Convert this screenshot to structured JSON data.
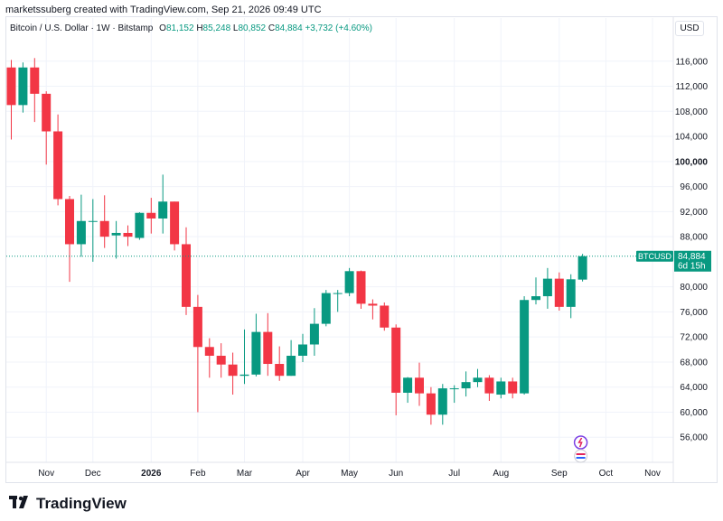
{
  "credit": "marketssuberg created with TradingView.com, Sep 21, 2026 09:49 UTC",
  "legend": {
    "symbol": "Bitcoin / U.S. Dollar · 1W · Bitstamp",
    "o_label": "O",
    "o_value": "81,152",
    "h_label": "H",
    "h_value": "85,248",
    "l_label": "L",
    "l_value": "80,852",
    "c_label": "C",
    "c_value": "84,884",
    "change": "+3,732 (+4.60%)"
  },
  "currency": "USD",
  "price_tag": {
    "symbol": "BTCUSD",
    "price": "84,884",
    "countdown": "6d 15h"
  },
  "logo_text": "TradingView",
  "colors": {
    "up": "#089981",
    "down": "#f23645",
    "grid": "#f0f3fa",
    "axis_text": "#131722"
  },
  "chart_data": {
    "type": "candlestick",
    "ylim": [
      52000,
      120000
    ],
    "x_ticks": [
      {
        "label": "Nov",
        "index": 3
      },
      {
        "label": "Dec",
        "index": 7
      },
      {
        "label": "2026",
        "index": 12
      },
      {
        "label": "Feb",
        "index": 16
      },
      {
        "label": "Mar",
        "index": 20
      },
      {
        "label": "Apr",
        "index": 25
      },
      {
        "label": "May",
        "index": 29
      },
      {
        "label": "Jun",
        "index": 33
      },
      {
        "label": "Jul",
        "index": 38
      },
      {
        "label": "Aug",
        "index": 42
      },
      {
        "label": "Sep",
        "index": 47
      },
      {
        "label": "Oct",
        "index": 51
      },
      {
        "label": "Nov",
        "index": 55
      }
    ],
    "y_ticks": [
      {
        "label": "116,000",
        "value": 116000
      },
      {
        "label": "112,000",
        "value": 112000
      },
      {
        "label": "108,000",
        "value": 108000
      },
      {
        "label": "104,000",
        "value": 104000
      },
      {
        "label": "100,000",
        "value": 100000,
        "bold": true
      },
      {
        "label": "96,000",
        "value": 96000
      },
      {
        "label": "92,000",
        "value": 92000
      },
      {
        "label": "88,000",
        "value": 88000
      },
      {
        "label": "80,000",
        "value": 80000
      },
      {
        "label": "76,000",
        "value": 76000
      },
      {
        "label": "72,000",
        "value": 72000
      },
      {
        "label": "68,000",
        "value": 68000
      },
      {
        "label": "64,000",
        "value": 64000
      },
      {
        "label": "60,000",
        "value": 60000
      },
      {
        "label": "56,000",
        "value": 56000
      }
    ],
    "last_price": 84884,
    "candles": [
      {
        "o": 115000,
        "h": 116200,
        "l": 103500,
        "c": 109000
      },
      {
        "o": 109000,
        "h": 115800,
        "l": 107800,
        "c": 115000
      },
      {
        "o": 115000,
        "h": 116500,
        "l": 106300,
        "c": 110800
      },
      {
        "o": 110800,
        "h": 111200,
        "l": 99500,
        "c": 104800
      },
      {
        "o": 104800,
        "h": 107500,
        "l": 93000,
        "c": 94000
      },
      {
        "o": 94000,
        "h": 94500,
        "l": 80800,
        "c": 86800
      },
      {
        "o": 86800,
        "h": 94700,
        "l": 84800,
        "c": 90500
      },
      {
        "o": 90500,
        "h": 94000,
        "l": 84000,
        "c": 90500
      },
      {
        "o": 90500,
        "h": 94600,
        "l": 86200,
        "c": 88000
      },
      {
        "o": 88200,
        "h": 90500,
        "l": 84500,
        "c": 88600
      },
      {
        "o": 88600,
        "h": 89800,
        "l": 86500,
        "c": 88000
      },
      {
        "o": 87800,
        "h": 91900,
        "l": 87500,
        "c": 91800
      },
      {
        "o": 91800,
        "h": 94200,
        "l": 88500,
        "c": 90900
      },
      {
        "o": 90900,
        "h": 97900,
        "l": 88500,
        "c": 93600
      },
      {
        "o": 93600,
        "h": 93600,
        "l": 85800,
        "c": 86800
      },
      {
        "o": 86800,
        "h": 89500,
        "l": 75500,
        "c": 76800
      },
      {
        "o": 76800,
        "h": 78700,
        "l": 60000,
        "c": 70400
      },
      {
        "o": 70400,
        "h": 71800,
        "l": 65500,
        "c": 69000
      },
      {
        "o": 69000,
        "h": 71000,
        "l": 65500,
        "c": 67600
      },
      {
        "o": 67600,
        "h": 69500,
        "l": 62800,
        "c": 65800
      },
      {
        "o": 65800,
        "h": 73200,
        "l": 64500,
        "c": 66000
      },
      {
        "o": 66000,
        "h": 75700,
        "l": 65700,
        "c": 72800
      },
      {
        "o": 72800,
        "h": 75800,
        "l": 65800,
        "c": 67700
      },
      {
        "o": 67700,
        "h": 70500,
        "l": 65000,
        "c": 65800
      },
      {
        "o": 65800,
        "h": 71500,
        "l": 65800,
        "c": 69000
      },
      {
        "o": 69000,
        "h": 72500,
        "l": 68000,
        "c": 70800
      },
      {
        "o": 70800,
        "h": 76600,
        "l": 69000,
        "c": 74100
      },
      {
        "o": 74100,
        "h": 79500,
        "l": 73700,
        "c": 79000
      },
      {
        "o": 79000,
        "h": 79500,
        "l": 76000,
        "c": 79000
      },
      {
        "o": 79000,
        "h": 83000,
        "l": 78500,
        "c": 82500
      },
      {
        "o": 82500,
        "h": 82600,
        "l": 76500,
        "c": 77300
      },
      {
        "o": 77300,
        "h": 78000,
        "l": 74800,
        "c": 77000
      },
      {
        "o": 77000,
        "h": 77500,
        "l": 73000,
        "c": 73500
      },
      {
        "o": 73500,
        "h": 74000,
        "l": 59500,
        "c": 63100
      },
      {
        "o": 63100,
        "h": 65600,
        "l": 61500,
        "c": 65500
      },
      {
        "o": 65500,
        "h": 67900,
        "l": 61000,
        "c": 63000
      },
      {
        "o": 63000,
        "h": 64000,
        "l": 58000,
        "c": 59600
      },
      {
        "o": 59600,
        "h": 64500,
        "l": 58000,
        "c": 63800
      },
      {
        "o": 63800,
        "h": 64300,
        "l": 61500,
        "c": 63800
      },
      {
        "o": 63800,
        "h": 66500,
        "l": 62500,
        "c": 64800
      },
      {
        "o": 64800,
        "h": 66900,
        "l": 64000,
        "c": 65500
      },
      {
        "o": 65500,
        "h": 65900,
        "l": 61800,
        "c": 63000
      },
      {
        "o": 62800,
        "h": 65500,
        "l": 62200,
        "c": 64900
      },
      {
        "o": 64900,
        "h": 65500,
        "l": 62200,
        "c": 63000
      },
      {
        "o": 63000,
        "h": 78500,
        "l": 62800,
        "c": 77900
      },
      {
        "o": 77900,
        "h": 81500,
        "l": 77200,
        "c": 78500
      },
      {
        "o": 78500,
        "h": 83000,
        "l": 76500,
        "c": 81300
      },
      {
        "o": 81300,
        "h": 82300,
        "l": 76200,
        "c": 76800
      },
      {
        "o": 76800,
        "h": 82000,
        "l": 75000,
        "c": 81200
      },
      {
        "o": 81152,
        "h": 85248,
        "l": 80852,
        "c": 84884
      }
    ]
  }
}
